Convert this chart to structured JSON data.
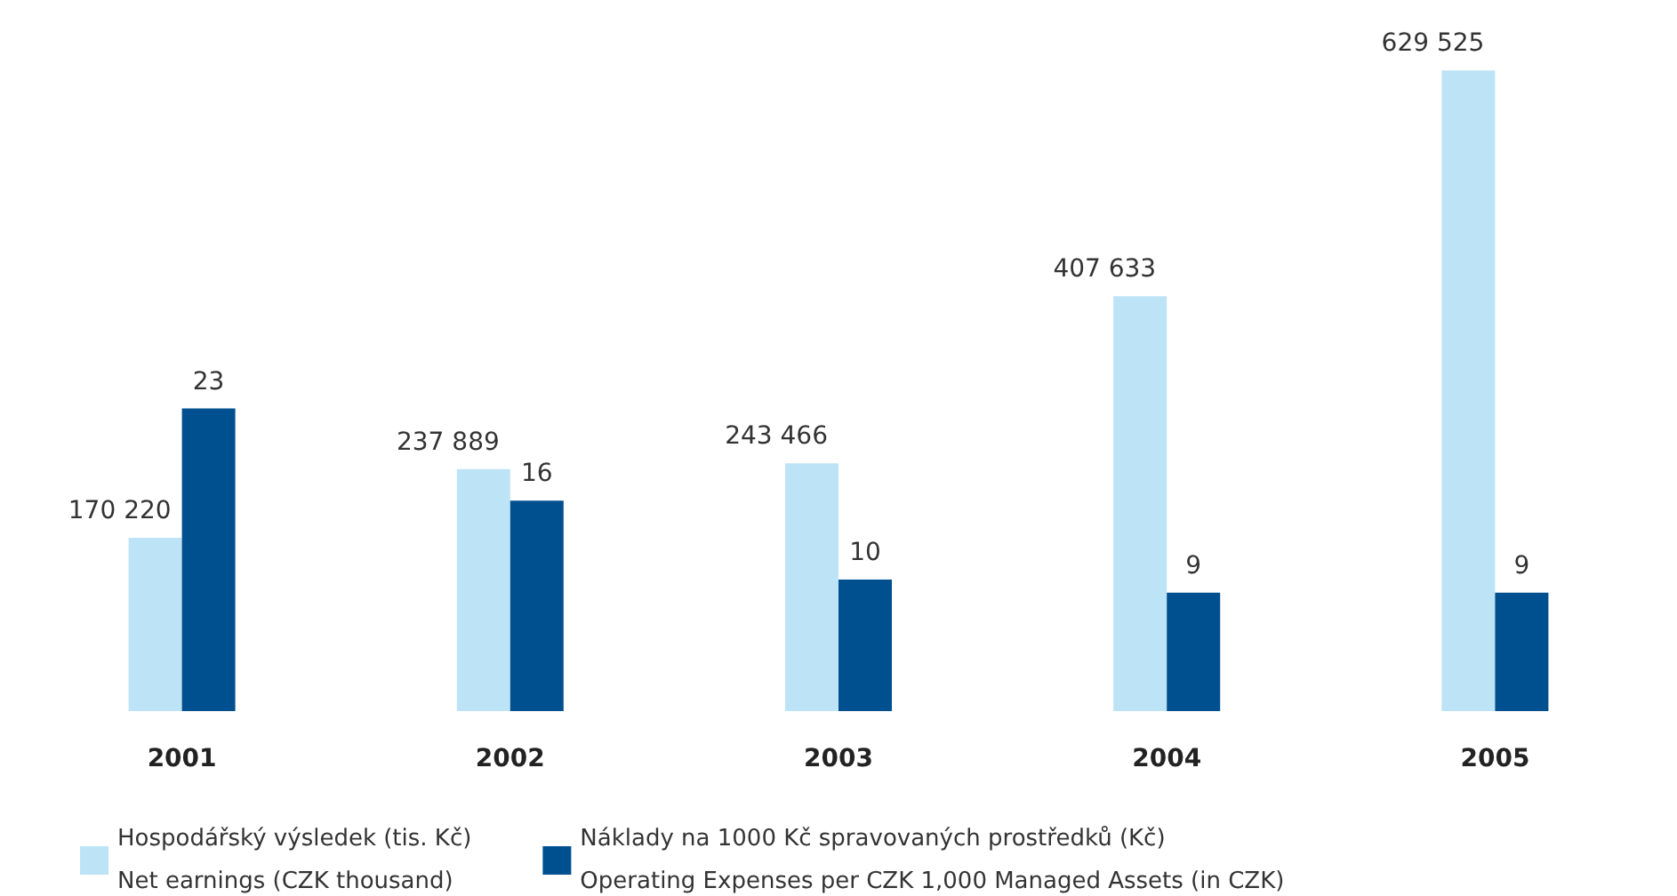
{
  "chart_data": {
    "type": "bar",
    "categories": [
      "2001",
      "2002",
      "2003",
      "2004",
      "2005"
    ],
    "series": [
      {
        "name": "Hospodářský výsledek (tis. Kč)\nNet earnings (CZK thousand)",
        "color": "#bde3f6",
        "values": [
          170220,
          237889,
          243466,
          407633,
          629525
        ]
      },
      {
        "name": "Náklady na 1000 Kč spravovaných prostředků (Kč)\nOperating Expenses per CZK 1,000 Managed Assets (in CZK)",
        "color": "#00508f",
        "values": [
          23,
          16,
          10,
          9,
          9
        ],
        "axis": "y2"
      }
    ],
    "data_labels": true,
    "legend": "bottom left",
    "grid": false,
    "tick_labels": "x"
  }
}
